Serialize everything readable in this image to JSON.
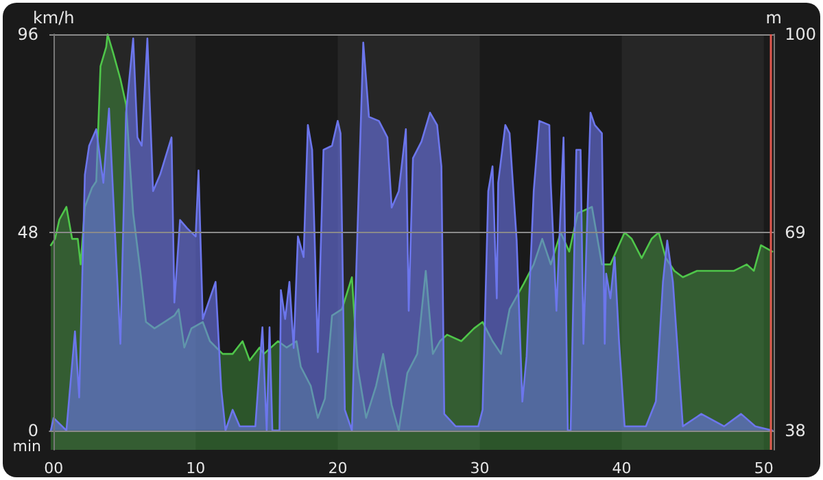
{
  "chart_data": {
    "type": "area",
    "xlabel": "min",
    "ylabel": "km/h",
    "y2label": "m",
    "xlim": [
      -0.3,
      50.7
    ],
    "xticks": [
      {
        "value": 0,
        "label": "00"
      },
      10,
      20,
      30,
      40,
      50
    ],
    "ylim": [
      -4.7,
      96
    ],
    "yticks": [
      0,
      48,
      96
    ],
    "y2lim": [
      35,
      100
    ],
    "y2ticks": [
      38,
      69,
      100
    ],
    "grid": "y",
    "marker": "none",
    "line_style": "solid",
    "bands": [
      {
        "axis": "x",
        "from": 0,
        "to": 10,
        "color": "#262626"
      },
      {
        "axis": "x",
        "from": 20,
        "to": 30,
        "color": "#262626"
      },
      {
        "axis": "x",
        "from": 40,
        "to": 50,
        "color": "#262626"
      }
    ],
    "ref_lines": [
      {
        "axis": "x",
        "value": 50.5,
        "color": "#e0584f"
      }
    ],
    "series": [
      {
        "axis": "y2",
        "color": "#4fc64a",
        "x": [
          -0.2,
          0.1,
          0.4,
          0.9,
          1.3,
          1.7,
          1.9,
          2.2,
          2.7,
          3.0,
          3.3,
          3.7,
          3.8,
          4.2,
          4.7,
          5.1,
          5.6,
          6.1,
          6.5,
          7.1,
          7.8,
          8.5,
          8.8,
          9.2,
          9.7,
          10.5,
          11.0,
          11.9,
          12.6,
          13.3,
          13.8,
          14.5,
          14.8,
          15.8,
          16.4,
          17.1,
          17.4,
          18.1,
          18.6,
          19.1,
          19.6,
          20.3,
          21.0,
          21.4,
          22.0,
          22.7,
          23.2,
          23.8,
          24.3,
          24.9,
          25.6,
          26.2,
          26.7,
          27.2,
          27.7,
          28.7,
          29.6,
          30.2,
          30.9,
          31.5,
          32.1,
          33.1,
          33.8,
          34.4,
          35.0,
          35.7,
          36.3,
          36.9,
          37.9,
          38.6,
          39.2,
          40.2,
          40.7,
          41.4,
          42.1,
          42.6,
          43.1,
          43.7,
          44.3,
          45.3,
          46.5,
          47.9,
          48.8,
          49.3,
          49.8,
          50.6
        ],
        "values": [
          67,
          68,
          71,
          73,
          68,
          68,
          64,
          73,
          76,
          77,
          95,
          98,
          100,
          97,
          93,
          89,
          72,
          63,
          55,
          54,
          55,
          56,
          57,
          51,
          54,
          55,
          52,
          50,
          50,
          52,
          49,
          51,
          50,
          52,
          51,
          52,
          48,
          45,
          40,
          43,
          56,
          57,
          62,
          48,
          40,
          45,
          50,
          42,
          38,
          47,
          50,
          63,
          50,
          52,
          53,
          52,
          54,
          55,
          52,
          50,
          57,
          61,
          64,
          68,
          64,
          69,
          66,
          72,
          73,
          64,
          64,
          69,
          68,
          65,
          68,
          69,
          65,
          63,
          62,
          63,
          63,
          63,
          64,
          63,
          67,
          66
        ]
      },
      {
        "color": "#6c76ec",
        "x": [
          -0.2,
          0.0,
          0.9,
          1.3,
          1.5,
          1.8,
          2.2,
          2.5,
          3.0,
          3.5,
          3.9,
          4.4,
          4.7,
          5.1,
          5.6,
          5.9,
          6.2,
          6.6,
          7.0,
          7.5,
          8.3,
          8.5,
          8.9,
          9.4,
          10.0,
          10.2,
          10.5,
          11.4,
          11.8,
          12.1,
          12.6,
          13.1,
          14.2,
          14.7,
          15.0,
          15.2,
          15.4,
          15.9,
          16.0,
          16.3,
          16.6,
          16.9,
          17.2,
          17.6,
          17.9,
          18.2,
          18.6,
          19.0,
          19.6,
          20.0,
          20.2,
          20.5,
          21.0,
          21.3,
          21.8,
          22.2,
          22.9,
          23.5,
          23.8,
          24.3,
          24.8,
          25.0,
          25.3,
          25.9,
          26.5,
          27.0,
          27.3,
          27.5,
          28.3,
          29.9,
          30.2,
          30.6,
          30.9,
          31.2,
          31.3,
          31.8,
          32.1,
          32.6,
          33.0,
          33.3,
          33.8,
          34.2,
          34.9,
          35.0,
          35.4,
          35.9,
          36.2,
          36.4,
          36.8,
          37.1,
          37.3,
          37.8,
          38.1,
          38.6,
          38.8,
          38.9,
          39.2,
          39.5,
          39.8,
          40.2,
          41.7,
          42.4,
          42.9,
          43.2,
          43.6,
          44.0,
          44.3,
          45.6,
          47.2,
          48.4,
          49.4,
          50.6
        ],
        "values": [
          0,
          3,
          0,
          16,
          24,
          8,
          62,
          69,
          73,
          60,
          78,
          42,
          21,
          77,
          95,
          71,
          69,
          95,
          58,
          62,
          71,
          31,
          51,
          49,
          47,
          63,
          27,
          36,
          10,
          0,
          5,
          1,
          1,
          25,
          0,
          25,
          0,
          0,
          34,
          27,
          36,
          20,
          47,
          42,
          74,
          68,
          19,
          68,
          69,
          75,
          72,
          5,
          0,
          38,
          94,
          76,
          75,
          71,
          54,
          58,
          73,
          29,
          66,
          70,
          77,
          74,
          64,
          4,
          1,
          1,
          5,
          58,
          64,
          32,
          60,
          74,
          72,
          46,
          7,
          18,
          58,
          75,
          74,
          60,
          29,
          71,
          0,
          0,
          68,
          68,
          21,
          77,
          74,
          72,
          21,
          38,
          32,
          42,
          22,
          1,
          1,
          7,
          36,
          46,
          36,
          16,
          1,
          4,
          1,
          4,
          1,
          0
        ]
      }
    ]
  }
}
